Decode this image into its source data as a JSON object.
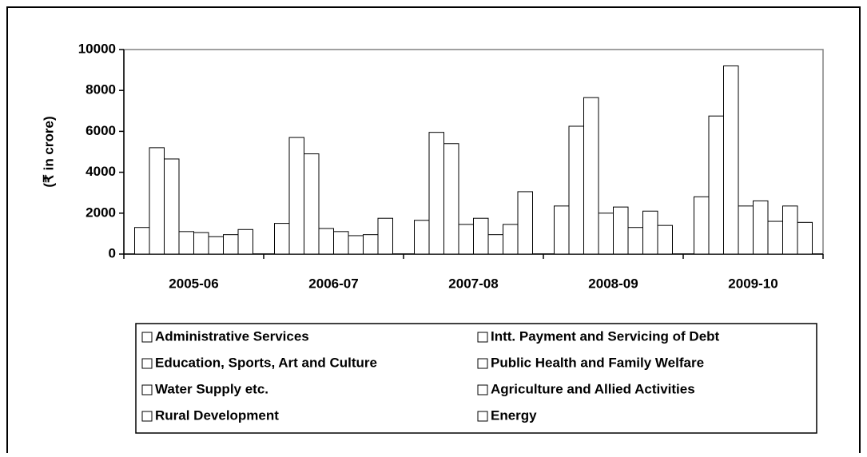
{
  "chart_data": {
    "type": "bar",
    "y_label": "(₹ in crore)",
    "categories": [
      "2005-06",
      "2006-07",
      "2007-08",
      "2008-09",
      "2009-10"
    ],
    "series": [
      {
        "name": "Administrative Services",
        "color": "#ffffff",
        "values": [
          1300,
          1500,
          1650,
          2350,
          2800
        ]
      },
      {
        "name": "Intt. Payment and Servicing of Debt",
        "color": "#ffffff",
        "values": [
          5200,
          5700,
          5950,
          6250,
          6750
        ]
      },
      {
        "name": "Education, Sports, Art and Culture",
        "color": "#ffffff",
        "values": [
          4650,
          4900,
          5400,
          7650,
          9200
        ]
      },
      {
        "name": "Public Health and Family Welfare",
        "color": "#ffffff",
        "values": [
          1100,
          1250,
          1450,
          2000,
          2350
        ]
      },
      {
        "name": "Water Supply etc.",
        "color": "#ffffff",
        "values": [
          1050,
          1100,
          1750,
          2300,
          2600
        ]
      },
      {
        "name": "Agriculture and Allied Activities",
        "color": "#ffffff",
        "values": [
          850,
          900,
          950,
          1300,
          1600
        ]
      },
      {
        "name": "Rural Development",
        "color": "#ffffff",
        "values": [
          950,
          950,
          1450,
          2100,
          2350
        ]
      },
      {
        "name": "Energy",
        "color": "#ffffff",
        "values": [
          1200,
          1750,
          3050,
          1400,
          1550
        ]
      }
    ],
    "ylim": [
      0,
      10000
    ],
    "yticks": [
      0,
      2000,
      4000,
      6000,
      8000,
      10000
    ],
    "grid": false,
    "legend": "bottom"
  }
}
